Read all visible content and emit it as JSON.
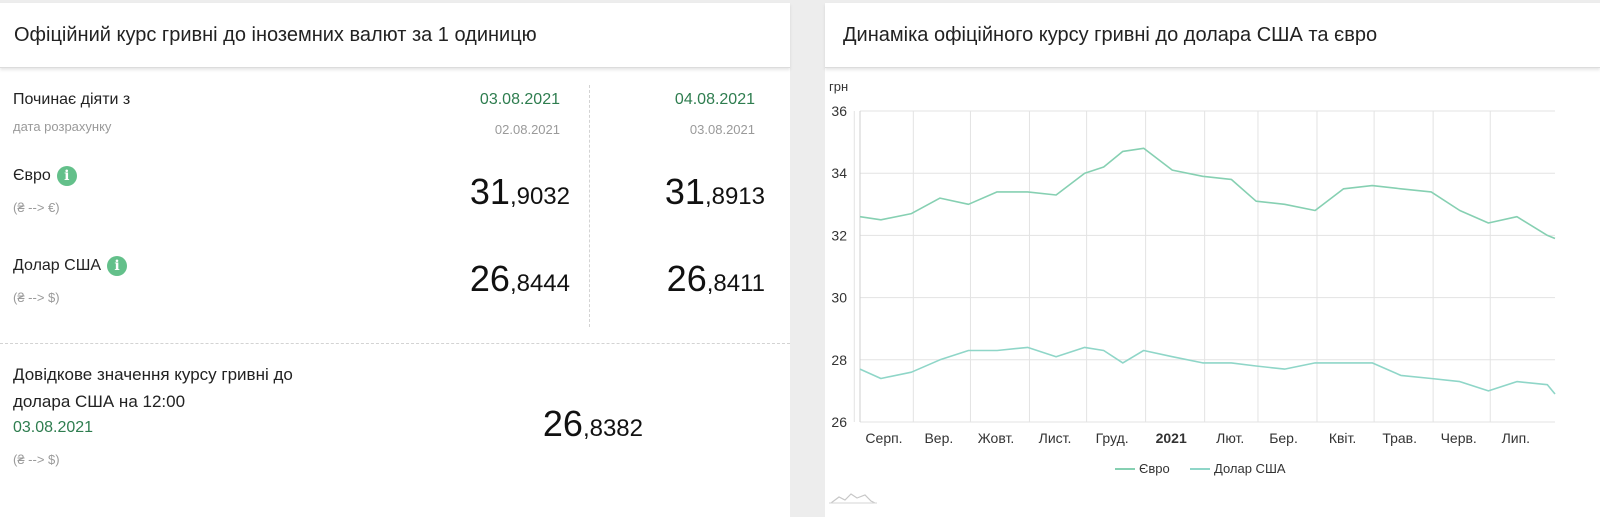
{
  "left_panel": {
    "title": "Офіційний курс гривні до іноземних валют за 1 одиницю",
    "effective_label": "Починає діяти з",
    "calc_date_label": "дата розрахунку",
    "columns": [
      {
        "date": "03.08.2021",
        "calc_date": "02.08.2021"
      },
      {
        "date": "04.08.2021",
        "calc_date": "03.08.2021"
      }
    ],
    "currencies": [
      {
        "name": "Євро",
        "direction": "(₴ --> €)",
        "info_icon": "i",
        "rates": [
          {
            "int": "31",
            "frac": ",9032"
          },
          {
            "int": "31",
            "frac": ",8913"
          }
        ]
      },
      {
        "name": "Долар США",
        "direction": "(₴ --> $)",
        "info_icon": "i",
        "rates": [
          {
            "int": "26",
            "frac": ",8444"
          },
          {
            "int": "26",
            "frac": ",8411"
          }
        ]
      }
    ],
    "reference": {
      "line1": "Довідкове значення курсу гривні до",
      "line2": "долара США на 12:00",
      "date": "03.08.2021",
      "direction": "(₴ --> $)",
      "rate_int": "26",
      "rate_frac": ",8382"
    }
  },
  "right_panel": {
    "title": "Динаміка офіційного курсу гривні до долара США та євро"
  },
  "colors": {
    "euro_line": "#86d0b2",
    "usd_line": "#8fd6c8",
    "accent_green": "#2e7d4f",
    "info_icon": "#63c08a"
  },
  "chart_data": {
    "type": "line",
    "ylabel": "грн",
    "ylim": [
      26,
      36
    ],
    "yticks": [
      26,
      28,
      30,
      32,
      34,
      36
    ],
    "x_range": [
      "2020-08-04",
      "2021-08-04"
    ],
    "xticks": [
      {
        "label": "Серп.",
        "bold": false
      },
      {
        "label": "Вер.",
        "bold": false
      },
      {
        "label": "Жовт.",
        "bold": false
      },
      {
        "label": "Лист.",
        "bold": false
      },
      {
        "label": "Груд.",
        "bold": false
      },
      {
        "label": "2021",
        "bold": true
      },
      {
        "label": "Лют.",
        "bold": false
      },
      {
        "label": "Бер.",
        "bold": false
      },
      {
        "label": "Квіт.",
        "bold": false
      },
      {
        "label": "Трав.",
        "bold": false
      },
      {
        "label": "Черв.",
        "bold": false
      },
      {
        "label": "Лип.",
        "bold": false
      }
    ],
    "grid": true,
    "legend_position": "bottom-center",
    "series": [
      {
        "name": "Євро",
        "x": [
          "2020-08-04",
          "2020-08-15",
          "2020-08-31",
          "2020-09-15",
          "2020-09-30",
          "2020-10-15",
          "2020-10-31",
          "2020-11-15",
          "2020-11-30",
          "2020-12-10",
          "2020-12-20",
          "2020-12-31",
          "2021-01-15",
          "2021-01-31",
          "2021-02-15",
          "2021-02-28",
          "2021-03-15",
          "2021-03-31",
          "2021-04-15",
          "2021-04-30",
          "2021-05-15",
          "2021-05-31",
          "2021-06-15",
          "2021-06-30",
          "2021-07-15",
          "2021-07-31",
          "2021-08-04"
        ],
        "values": [
          32.6,
          32.5,
          32.7,
          33.2,
          33.0,
          33.4,
          33.4,
          33.3,
          34.0,
          34.2,
          34.7,
          34.8,
          34.1,
          33.9,
          33.8,
          33.1,
          33.0,
          32.8,
          33.5,
          33.6,
          33.5,
          33.4,
          32.8,
          32.4,
          32.6,
          32.0,
          31.9
        ]
      },
      {
        "name": "Долар США",
        "x": [
          "2020-08-04",
          "2020-08-15",
          "2020-08-31",
          "2020-09-15",
          "2020-09-30",
          "2020-10-15",
          "2020-10-31",
          "2020-11-15",
          "2020-11-30",
          "2020-12-10",
          "2020-12-20",
          "2020-12-31",
          "2021-01-15",
          "2021-01-31",
          "2021-02-15",
          "2021-02-28",
          "2021-03-15",
          "2021-03-31",
          "2021-04-15",
          "2021-04-30",
          "2021-05-15",
          "2021-05-31",
          "2021-06-15",
          "2021-06-30",
          "2021-07-15",
          "2021-07-31",
          "2021-08-04"
        ],
        "values": [
          27.7,
          27.4,
          27.6,
          28.0,
          28.3,
          28.3,
          28.4,
          28.1,
          28.4,
          28.3,
          27.9,
          28.3,
          28.1,
          27.9,
          27.9,
          27.8,
          27.7,
          27.9,
          27.9,
          27.9,
          27.5,
          27.4,
          27.3,
          27.0,
          27.3,
          27.2,
          26.9
        ]
      }
    ]
  }
}
